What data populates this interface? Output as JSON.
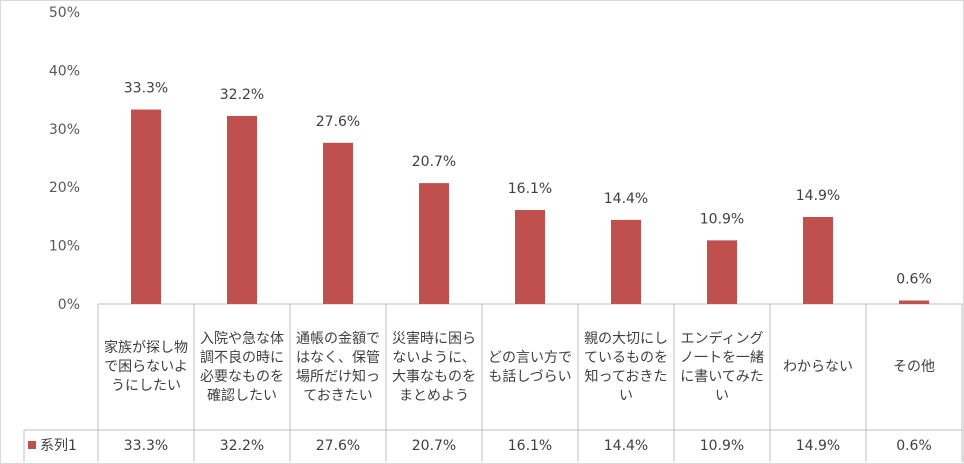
{
  "chart_data": {
    "type": "bar",
    "categories": [
      "家族が探し物で困らないようにしたい",
      "入院や急な体調不良の時に必要なものを確認したい",
      "通帳の金額ではなく、保管場所だけ知っておきたい",
      "災害時に困らないように、大事なものをまとめよう",
      "どの言い方でも話しづらい",
      "親の大切にしているものを知っておきたい",
      "エンディングノ一トを一緒に書いてみたい",
      "わからない",
      "その他"
    ],
    "series": [
      {
        "name": "系列1",
        "values": [
          33.3,
          32.2,
          27.6,
          20.7,
          16.1,
          14.4,
          10.9,
          14.9,
          0.6
        ],
        "labels": [
          "33.3%",
          "32.2%",
          "27.6%",
          "20.7%",
          "16.1%",
          "14.4%",
          "10.9%",
          "14.9%",
          "0.6%"
        ]
      }
    ],
    "ylim": [
      0,
      50
    ],
    "yticks": [
      "0%",
      "10%",
      "20%",
      "30%",
      "40%",
      "50%"
    ],
    "grid": false,
    "data_table": true,
    "colors": {
      "bar": "#c0504d"
    }
  }
}
